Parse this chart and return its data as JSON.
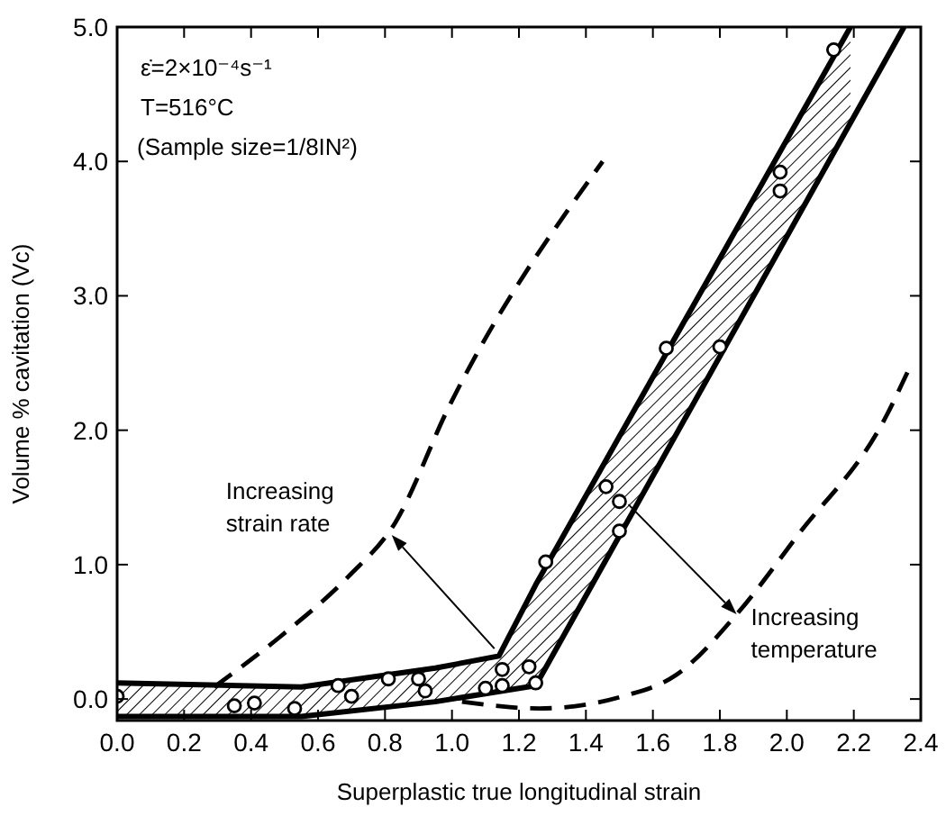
{
  "chart_data": {
    "type": "scatter",
    "xlabel": "Superplastic true longitudinal strain",
    "ylabel": "Volume % cavitation (Vc)",
    "xlim": [
      0,
      2.4
    ],
    "ylim": [
      -0.16,
      5.0
    ],
    "xticks": [
      {
        "value": 0,
        "label": "0.0"
      },
      {
        "value": 0.2,
        "label": "0.2"
      },
      {
        "value": 0.4,
        "label": "0.4"
      },
      {
        "value": 0.6,
        "label": "0.6"
      },
      {
        "value": 0.8,
        "label": "0.8"
      },
      {
        "value": 1.0,
        "label": "1.0"
      },
      {
        "value": 1.2,
        "label": "1.2"
      },
      {
        "value": 1.4,
        "label": "1.4"
      },
      {
        "value": 1.6,
        "label": "1.6"
      },
      {
        "value": 1.8,
        "label": "1.8"
      },
      {
        "value": 2.0,
        "label": "2.0"
      },
      {
        "value": 2.2,
        "label": "2.2"
      },
      {
        "value": 2.4,
        "label": "2.4"
      }
    ],
    "yticks": [
      {
        "value": 0,
        "label": "0.0"
      },
      {
        "value": 1,
        "label": "1.0"
      },
      {
        "value": 2,
        "label": "2.0"
      },
      {
        "value": 3,
        "label": "3.0"
      },
      {
        "value": 4,
        "label": "4.0"
      },
      {
        "value": 5,
        "label": "5.0"
      }
    ],
    "grid": false,
    "marker": "none",
    "series": [
      {
        "type": "line",
        "color": "#000000",
        "line_style": "solid",
        "x": [
          0,
          0.55,
          0.95,
          1.14,
          1.25,
          2.19
        ],
        "values": [
          0.12,
          0.09,
          0.23,
          0.32,
          0.85,
          5.0
        ],
        "upper": [
          0.12,
          0.09,
          0.23,
          0.32,
          0.85,
          5.0
        ],
        "lower": [
          -0.13,
          -0.13,
          -0.02,
          0.06,
          0.1,
          4.29
        ]
      },
      {
        "type": "line",
        "color": "#000000",
        "line_style": "solid",
        "x": [
          0,
          0.55,
          0.95,
          1.25,
          2.35
        ],
        "values": [
          -0.13,
          -0.13,
          -0.02,
          0.1,
          5.0
        ]
      },
      {
        "type": "line",
        "color": "#000000",
        "line_style": "dashed",
        "x": [
          0.29,
          0.49,
          0.69,
          0.83,
          0.99,
          1.45
        ],
        "values": [
          0.09,
          0.47,
          0.91,
          1.31,
          2.17,
          4.0
        ]
      },
      {
        "type": "line",
        "color": "#000000",
        "line_style": "dashed",
        "x": [
          1.03,
          1.26,
          1.51,
          1.67,
          1.85,
          2.03,
          2.3,
          2.36
        ],
        "values": [
          -0.02,
          -0.07,
          0.02,
          0.18,
          0.63,
          1.21,
          2.12,
          2.43
        ]
      },
      {
        "color": "#000000",
        "marker": "circle",
        "x": [
          0,
          0.35,
          0.41,
          0.53,
          0.66,
          0.7,
          0.81,
          0.9,
          0.92,
          1.1,
          1.15,
          1.15,
          1.23,
          1.25,
          1.28,
          1.46,
          1.5,
          1.5,
          1.64,
          1.8,
          1.98,
          1.98,
          2.14
        ],
        "values": [
          0.02,
          -0.05,
          -0.03,
          -0.07,
          0.1,
          0.02,
          0.15,
          0.15,
          0.06,
          0.08,
          0.1,
          0.22,
          0.24,
          0.12,
          1.02,
          1.58,
          1.47,
          1.25,
          2.61,
          2.62,
          3.92,
          3.78,
          4.83
        ]
      }
    ],
    "annotations": [
      "ε̇=2×10⁻⁴s⁻¹",
      "T=516°C",
      "(Sample size=1/8IN²)",
      {
        "text": "Increasing\nstrain rate",
        "x": 0.82,
        "y": 1.22
      },
      {
        "text": "Increasing\ntemperature",
        "x": 1.85,
        "y": 0.63
      }
    ]
  }
}
